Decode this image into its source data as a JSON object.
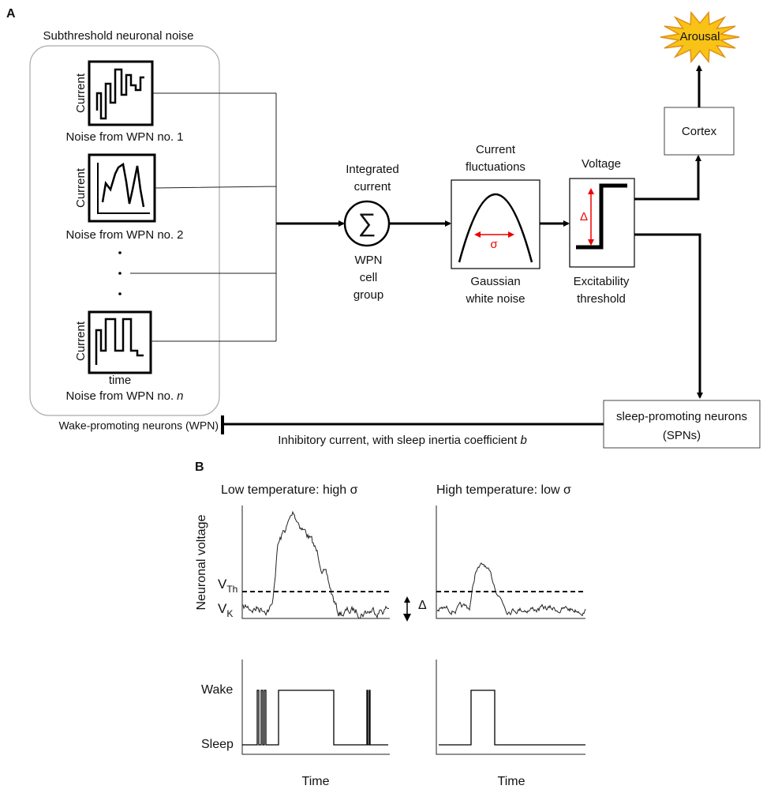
{
  "panel_a": {
    "label": "A",
    "noise_group": {
      "title": "Subthreshold neuronal noise",
      "sources": [
        {
          "y_label": "Current",
          "caption": "Noise from WPN no.",
          "index": "1"
        },
        {
          "y_label": "Current",
          "caption": "Noise from WPN no.",
          "index": "2"
        },
        {
          "y_label": "Current",
          "caption": "Noise from WPN no.",
          "index": "n"
        }
      ],
      "x_label": "time"
    },
    "sum_node": {
      "above": [
        "Integrated",
        "current"
      ],
      "symbol": "∑",
      "below": [
        "WPN",
        "cell",
        "group"
      ]
    },
    "gaussian": {
      "above": [
        "Current",
        "fluctuations"
      ],
      "symbol": "σ",
      "below": [
        "Gaussian",
        "white noise"
      ]
    },
    "threshold": {
      "above": "Voltage",
      "symbol": "Δ",
      "below": [
        "Excitability",
        "threshold"
      ]
    },
    "cortex": "Cortex",
    "arousal": "Arousal",
    "spn": [
      "sleep-promoting neurons",
      "(SPNs)"
    ],
    "wpn": "Wake-promoting neurons (WPN)",
    "inhibition": {
      "text": "Inhibitory current, with sleep inertia coefficient",
      "variable": "b"
    }
  },
  "panel_b": {
    "label": "B",
    "titles": [
      "Low temperature: high σ",
      "High temperature: low σ"
    ],
    "y_label": "Neuronal voltage",
    "v_th": {
      "base": "V",
      "sub": "Th"
    },
    "v_k": {
      "base": "V",
      "sub": "K"
    },
    "delta": "Δ",
    "states": [
      "Wake",
      "Sleep"
    ],
    "x_labels": [
      "Time",
      "Time"
    ]
  }
}
